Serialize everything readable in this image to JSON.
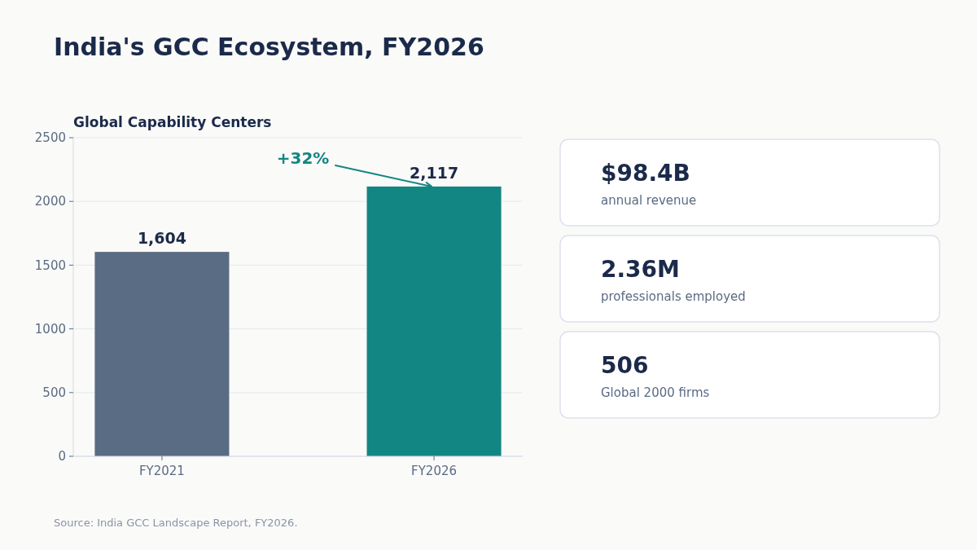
{
  "chart_data": [
    {
      "type": "bar",
      "title": "India's GCC Ecosystem, FY2026",
      "subtitle": "Global Capability Centers",
      "categories": [
        "FY2021",
        "FY2026"
      ],
      "values": [
        1604,
        2117
      ],
      "colors": [
        "#5a6b84",
        "#128683"
      ],
      "value_labels": [
        "1,604",
        "2,117"
      ],
      "ylim": [
        0,
        2500
      ],
      "yticks": [
        0,
        500,
        1000,
        1500,
        2000,
        2500
      ],
      "grid": "y",
      "annotations": [
        {
          "text": "+32%",
          "x": "FY2026",
          "y": 2117
        },
        "Source: India GCC Landscape Report, FY2026."
      ]
    },
    {
      "type": "other",
      "annotations": [
        "$98.4B",
        "annual revenue",
        "2.36M",
        "professionals employed",
        "506",
        "Global 2000 firms"
      ]
    }
  ]
}
